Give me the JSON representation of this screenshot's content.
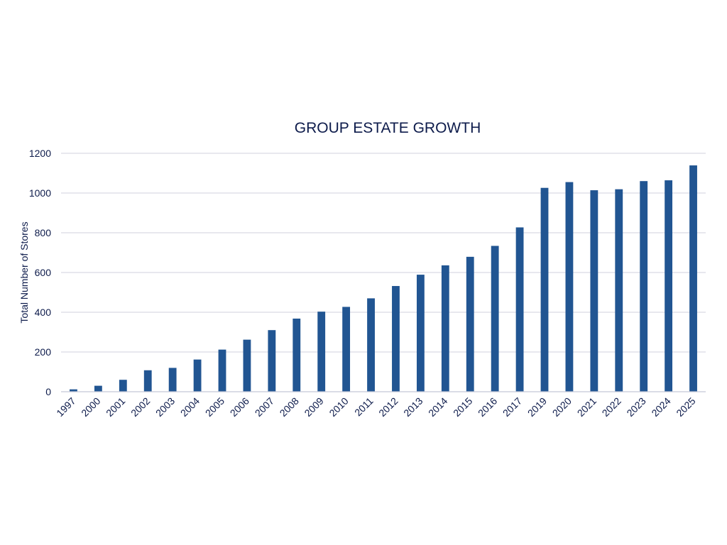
{
  "chart_data": {
    "type": "bar",
    "title": "GROUP ESTATE GROWTH",
    "xlabel": "",
    "ylabel": "Total Number of Stores",
    "categories": [
      "1997",
      "2000",
      "2001",
      "2002",
      "2003",
      "2004",
      "2005",
      "2006",
      "2007",
      "2008",
      "2009",
      "2010",
      "2011",
      "2012",
      "2013",
      "2014",
      "2015",
      "2016",
      "2017",
      "2019",
      "2020",
      "2021",
      "2022",
      "2023",
      "2024",
      "2025"
    ],
    "values": [
      12,
      30,
      60,
      108,
      120,
      162,
      212,
      262,
      310,
      368,
      403,
      427,
      470,
      532,
      589,
      636,
      679,
      734,
      827,
      1026,
      1055,
      1014,
      1019,
      1060,
      1064,
      1139
    ],
    "ylim": [
      0,
      1200
    ],
    "yticks": [
      0,
      200,
      400,
      600,
      800,
      1000,
      1200
    ],
    "ytick_labels": [
      "0",
      "200",
      "400",
      "600",
      "800",
      "1000",
      "1200"
    ],
    "grid": true,
    "legend": "none",
    "bar_color": "#215592",
    "text_color": "#0d1b4b"
  }
}
